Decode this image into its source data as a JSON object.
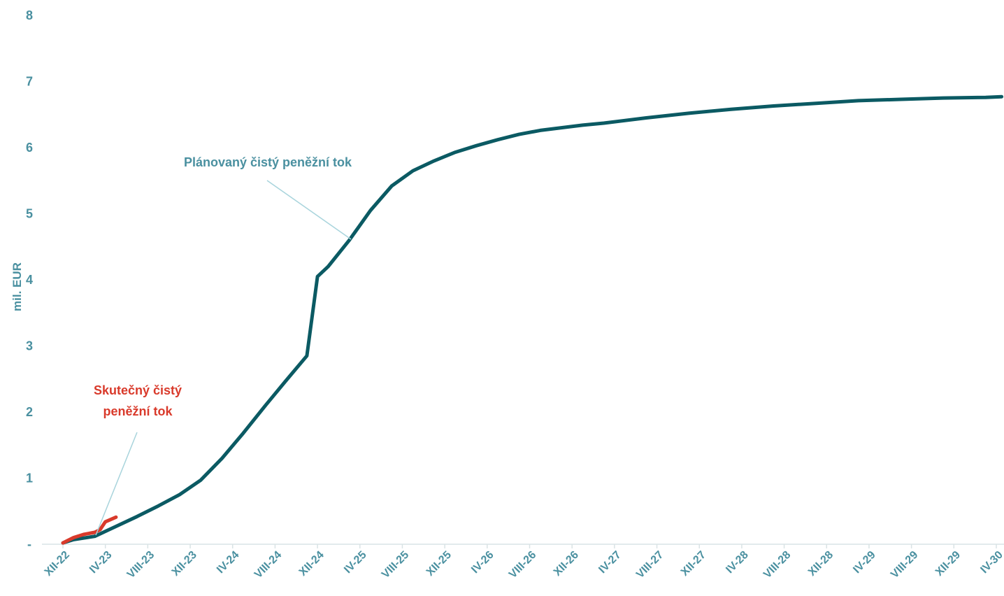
{
  "chart_data": {
    "type": "line",
    "ylabel": "mil. EUR",
    "ylim": [
      0,
      8
    ],
    "yticks": [
      "-",
      "1",
      "2",
      "3",
      "4",
      "5",
      "6",
      "7",
      "8"
    ],
    "categories": [
      "XII-22",
      "IV-23",
      "VIII-23",
      "XII-23",
      "IV-24",
      "VIII-24",
      "XII-24",
      "IV-25",
      "VIII-25",
      "XII-25",
      "IV-26",
      "VIII-26",
      "XII-26",
      "IV-27",
      "VIII-27",
      "XII-27",
      "IV-28",
      "VIII-28",
      "XII-28",
      "IV-29",
      "VIII-29",
      "XII-29",
      "IV-30"
    ],
    "grid": false,
    "series": [
      {
        "name": "Plánovaný čistý peněžní tok",
        "color": "#0b5a63",
        "x": [
          0,
          1,
          3,
          5,
          7,
          9,
          11,
          13,
          15,
          17,
          19,
          21,
          23,
          24,
          25,
          27,
          29,
          31,
          33,
          35,
          37,
          39,
          41,
          43,
          45,
          47,
          49,
          51,
          55,
          59,
          63,
          67,
          71,
          75,
          79,
          83,
          87,
          88.5
        ],
        "values": [
          0.02,
          0.07,
          0.12,
          0.27,
          0.42,
          0.58,
          0.75,
          0.97,
          1.3,
          1.68,
          2.08,
          2.47,
          2.85,
          4.05,
          4.2,
          4.6,
          5.05,
          5.42,
          5.65,
          5.8,
          5.93,
          6.03,
          6.12,
          6.2,
          6.26,
          6.3,
          6.34,
          6.37,
          6.45,
          6.52,
          6.58,
          6.63,
          6.67,
          6.71,
          6.73,
          6.75,
          6.76,
          6.77
        ]
      },
      {
        "name": "Skutečný čistý peněžní tok",
        "color": "#d93a2b",
        "x": [
          0,
          1,
          2,
          3,
          3.5,
          4,
          5
        ],
        "values": [
          0.02,
          0.1,
          0.15,
          0.18,
          0.22,
          0.34,
          0.41
        ]
      }
    ],
    "annotations": [
      {
        "label": "Plánovaný čistý peněžní tok",
        "color": "#4a90a0"
      },
      {
        "label_lines": [
          "Skutečný čistý",
          "peněžní tok"
        ],
        "color": "#d93a2b"
      }
    ]
  }
}
